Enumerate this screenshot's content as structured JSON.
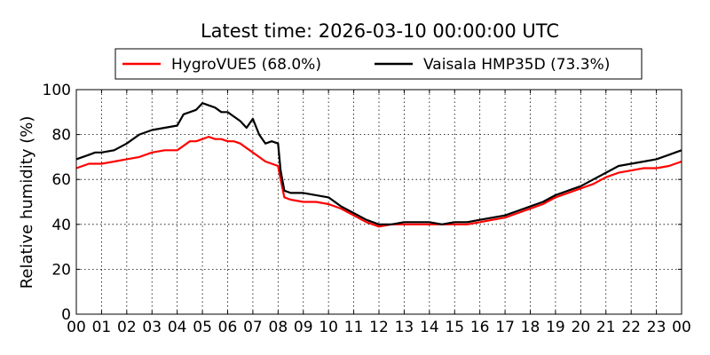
{
  "chart_data": {
    "type": "line",
    "title": "Latest time: 2026-03-10 00:00:00 UTC",
    "xlabel": "",
    "ylabel": "Relative humidity (%)",
    "xlim": [
      0,
      24
    ],
    "ylim": [
      0,
      100
    ],
    "grid": true,
    "legend_position": "top-center",
    "x_tick_labels": [
      "00",
      "01",
      "02",
      "03",
      "04",
      "05",
      "06",
      "07",
      "08",
      "09",
      "10",
      "11",
      "12",
      "13",
      "14",
      "15",
      "16",
      "17",
      "18",
      "19",
      "20",
      "21",
      "22",
      "23",
      "00"
    ],
    "y_ticks": [
      0,
      20,
      40,
      60,
      80,
      100
    ],
    "x": [
      0,
      0.25,
      0.5,
      0.75,
      1,
      1.5,
      2,
      2.5,
      3,
      3.5,
      4,
      4.25,
      4.5,
      4.75,
      5,
      5.25,
      5.5,
      5.75,
      6,
      6.25,
      6.5,
      6.75,
      7,
      7.25,
      7.5,
      7.75,
      8,
      8.1,
      8.25,
      8.5,
      9,
      9.5,
      10,
      10.5,
      11,
      11.5,
      12,
      12.5,
      13,
      13.5,
      14,
      14.5,
      15,
      15.5,
      16,
      16.5,
      17,
      17.5,
      18,
      18.5,
      19,
      19.5,
      20,
      20.5,
      21,
      21.5,
      22,
      22.5,
      23,
      23.5,
      24
    ],
    "series": [
      {
        "name": "HygroVUE5 (68.0%)",
        "color": "#ff0000",
        "values": [
          65,
          66,
          67,
          67,
          67,
          68,
          69,
          70,
          72,
          73,
          73,
          75,
          77,
          77,
          78,
          79,
          78,
          78,
          77,
          77,
          76,
          74,
          72,
          70,
          68,
          67,
          66,
          60,
          52,
          51,
          50,
          50,
          49,
          47,
          44,
          41,
          39,
          40,
          40,
          40,
          40,
          40,
          40,
          40,
          41,
          42,
          43,
          45,
          47,
          49,
          52,
          54,
          56,
          58,
          61,
          63,
          64,
          65,
          65,
          66,
          68
        ]
      },
      {
        "name": "Vaisala HMP35D (73.3%)",
        "color": "#000000",
        "values": [
          69,
          70,
          71,
          72,
          72,
          73,
          76,
          80,
          82,
          83,
          84,
          89,
          90,
          91,
          94,
          93,
          92,
          90,
          90,
          88,
          86,
          83,
          87,
          80,
          76,
          77,
          76,
          64,
          55,
          54,
          54,
          53,
          52,
          48,
          45,
          42,
          40,
          40,
          41,
          41,
          41,
          40,
          41,
          41,
          42,
          43,
          44,
          46,
          48,
          50,
          53,
          55,
          57,
          60,
          63,
          66,
          67,
          68,
          69,
          71,
          73
        ]
      }
    ]
  }
}
